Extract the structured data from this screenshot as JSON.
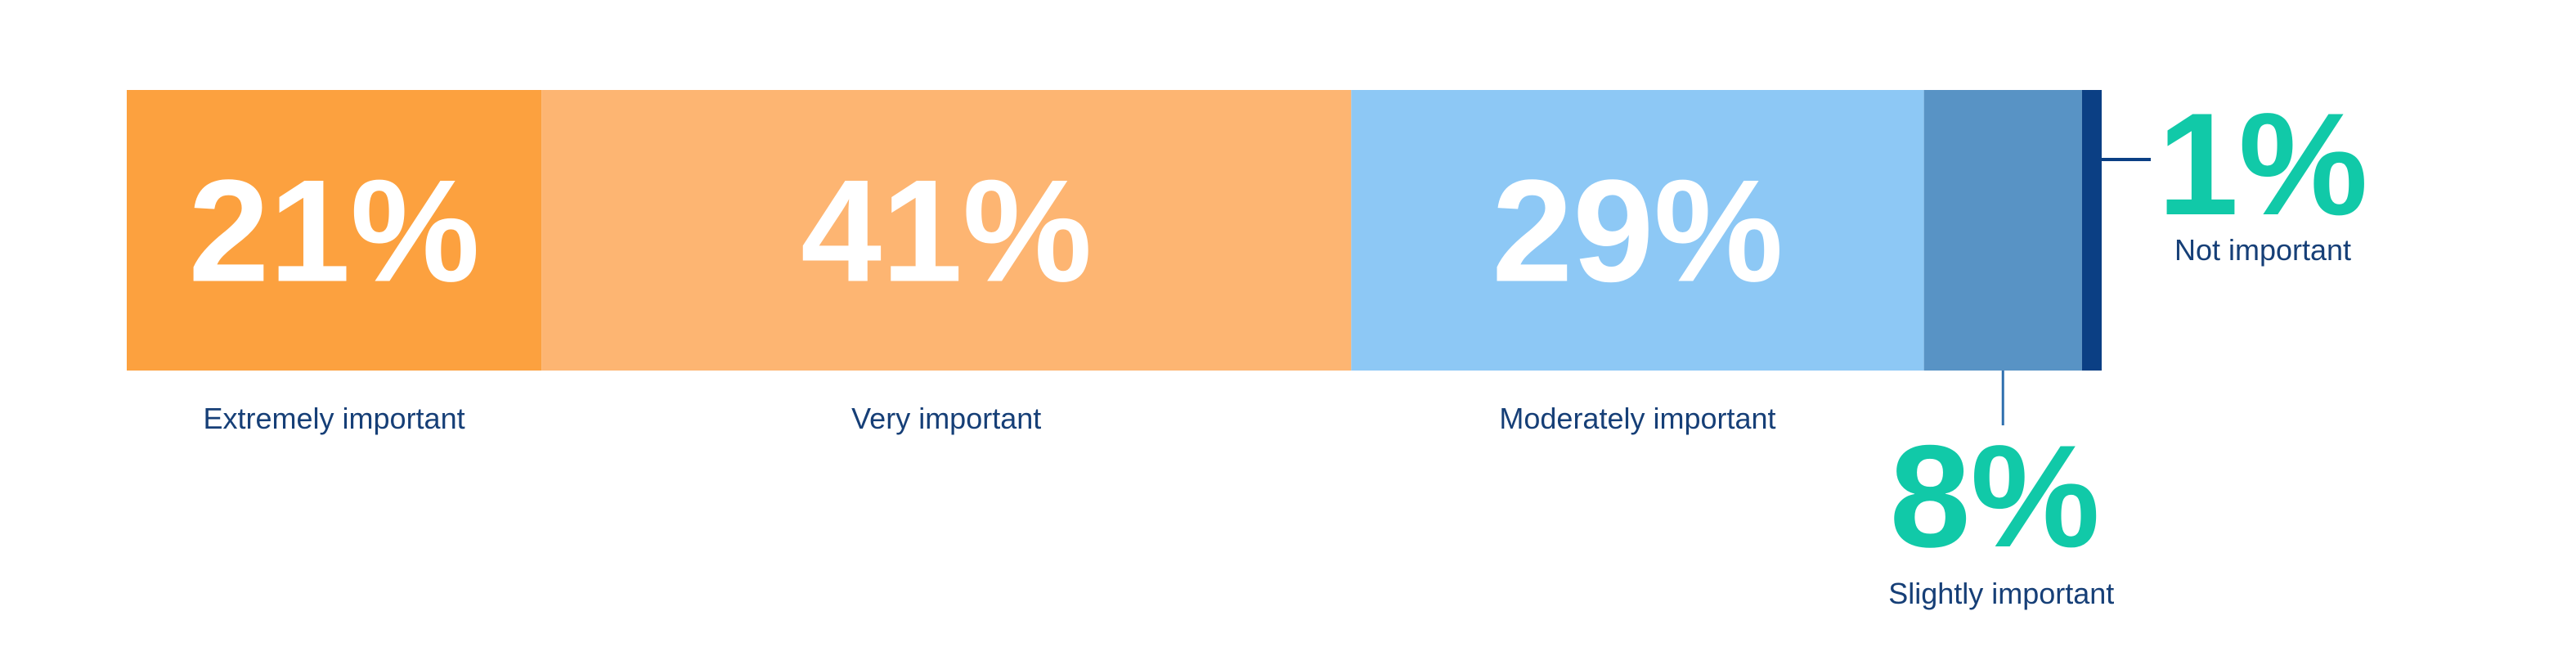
{
  "chart_data": {
    "type": "bar",
    "orientation": "horizontal-stacked",
    "categories": [
      "Extremely important",
      "Very important",
      "Moderately important",
      "Slightly important",
      "Not important"
    ],
    "series": [
      {
        "values": [
          21,
          41,
          29,
          8,
          1
        ]
      }
    ],
    "value_labels": [
      "21%",
      "41%",
      "29%",
      "8%",
      "1%"
    ],
    "colors": [
      "#fca13f",
      "#fdb572",
      "#8dc8f5",
      "#5893c5",
      "#0b3f84"
    ],
    "label_color": "#163f77",
    "callout_color": "#11c9a8",
    "callouts": [
      "Slightly important",
      "Not important"
    ],
    "unit": "%",
    "total": 100,
    "legend": "none",
    "grid": false
  }
}
